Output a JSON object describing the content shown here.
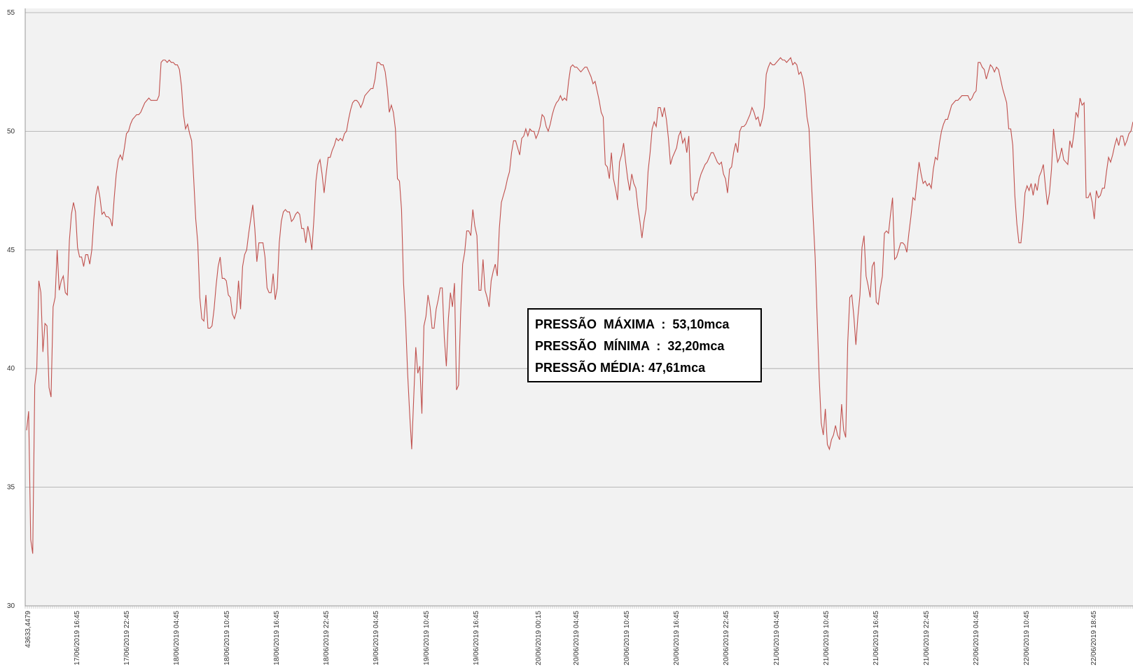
{
  "chart_data": {
    "type": "line",
    "title": "",
    "xlabel": "",
    "ylabel": "",
    "ylim": [
      30,
      55
    ],
    "yticks": [
      30,
      35,
      40,
      45,
      50,
      55
    ],
    "grid": "horizontal",
    "line_color": "#c0504d",
    "plot_background": "#f2f2f2",
    "x_tick_labels": [
      "43633,4479",
      "17/06/2019 16:45",
      "17/06/2019 22:45",
      "18/06/2019 04:45",
      "18/06/2019 10:45",
      "18/06/2019 16:45",
      "18/06/2019 22:45",
      "19/06/2019 04:45",
      "19/06/2019 10:45",
      "19/06/2019 16:45",
      "20/06/2019 00:15",
      "20/06/2019 04:45",
      "20/06/2019 10:45",
      "20/06/2019 16:45",
      "20/06/2019 22:45",
      "21/06/2019 04:45",
      "21/06/2019 10:45",
      "21/06/2019 16:45",
      "21/06/2019 22:45",
      "22/06/2019 04:45",
      "22/06/2019 10:45",
      "22/06/2019 18:45"
    ],
    "series": [
      {
        "values": [
          37.4,
          38.2,
          32.8,
          32.2,
          39.3,
          40.0,
          43.7,
          43.2,
          40.7,
          41.9,
          41.8,
          39.2,
          38.8,
          42.6,
          43.0,
          45.0,
          43.3,
          43.7,
          43.9,
          43.2,
          43.1,
          45.4,
          46.5,
          47.0,
          46.6,
          45.1,
          44.7,
          44.7,
          44.3,
          44.8,
          44.8,
          44.4,
          45.0,
          46.3,
          47.3,
          47.7,
          47.2,
          46.5,
          46.6,
          46.4,
          46.4,
          46.3,
          46.0,
          47.2,
          48.2,
          48.8,
          49.0,
          48.8,
          49.3,
          49.9,
          50.0,
          50.3,
          50.5,
          50.6,
          50.7,
          50.7,
          50.8,
          51.0,
          51.2,
          51.3,
          51.4,
          51.3,
          51.3,
          51.3,
          51.3,
          51.5,
          52.9,
          53.0,
          53.0,
          52.9,
          53.0,
          52.9,
          52.9,
          52.8,
          52.8,
          52.6,
          51.9,
          50.7,
          50.1,
          50.3,
          49.9,
          49.6,
          48.0,
          46.3,
          45.3,
          43.0,
          42.1,
          42.0,
          43.1,
          41.7,
          41.7,
          41.8,
          42.5,
          43.5,
          44.3,
          44.7,
          43.8,
          43.8,
          43.7,
          43.1,
          43.0,
          42.3,
          42.1,
          42.4,
          43.7,
          42.5,
          44.3,
          44.8,
          45.0,
          45.7,
          46.3,
          46.9,
          45.9,
          44.5,
          45.3,
          45.3,
          45.3,
          44.7,
          43.4,
          43.2,
          43.2,
          44.0,
          42.9,
          43.4,
          45.3,
          46.2,
          46.6,
          46.7,
          46.6,
          46.6,
          46.2,
          46.3,
          46.5,
          46.6,
          46.5,
          45.9,
          45.9,
          45.3,
          46.0,
          45.6,
          45.0,
          46.3,
          47.9,
          48.6,
          48.8,
          48.2,
          47.4,
          48.2,
          48.9,
          48.9,
          49.2,
          49.4,
          49.7,
          49.6,
          49.7,
          49.6,
          49.9,
          50.0,
          50.5,
          50.9,
          51.2,
          51.3,
          51.3,
          51.2,
          51.0,
          51.2,
          51.5,
          51.6,
          51.7,
          51.8,
          51.8,
          52.2,
          52.9,
          52.9,
          52.8,
          52.8,
          52.5,
          51.8,
          50.8,
          51.1,
          50.8,
          50.1,
          48.0,
          47.9,
          46.7,
          43.6,
          42.0,
          39.8,
          38.1,
          36.6,
          38.8,
          40.9,
          39.8,
          40.1,
          38.1,
          41.8,
          42.2,
          43.1,
          42.6,
          41.7,
          41.7,
          42.5,
          42.9,
          43.4,
          43.4,
          41.3,
          40.1,
          42.1,
          43.2,
          42.6,
          43.6,
          39.1,
          39.3,
          42.3,
          44.4,
          44.9,
          45.8,
          45.8,
          45.6,
          46.7,
          46.0,
          45.6,
          43.3,
          43.3,
          44.6,
          43.3,
          43.0,
          42.6,
          43.7,
          44.1,
          44.4,
          43.9,
          45.9,
          47.0,
          47.3,
          47.6,
          48.0,
          48.3,
          49.1,
          49.6,
          49.6,
          49.3,
          49.0,
          49.7,
          49.8,
          50.1,
          49.8,
          50.1,
          50.0,
          50.0,
          49.7,
          49.9,
          50.2,
          50.7,
          50.6,
          50.2,
          50.0,
          50.3,
          50.7,
          51.0,
          51.2,
          51.3,
          51.5,
          51.3,
          51.4,
          51.3,
          52.1,
          52.7,
          52.8,
          52.7,
          52.7,
          52.6,
          52.5,
          52.6,
          52.7,
          52.7,
          52.5,
          52.3,
          52.0,
          52.1,
          51.7,
          51.3,
          50.8,
          50.6,
          48.6,
          48.5,
          48.0,
          49.1,
          48.0,
          47.6,
          47.1,
          48.7,
          49.0,
          49.5,
          48.7,
          48.0,
          47.5,
          48.2,
          47.8,
          47.6,
          46.8,
          46.2,
          45.5,
          46.2,
          46.7,
          48.3,
          49.1,
          50.1,
          50.4,
          50.2,
          51.0,
          51.0,
          50.6,
          51.0,
          50.5,
          49.7,
          48.6,
          48.9,
          49.1,
          49.3,
          49.8,
          50.0,
          49.5,
          49.7,
          49.1,
          49.8,
          47.3,
          47.1,
          47.4,
          47.4,
          47.9,
          48.2,
          48.4,
          48.6,
          48.7,
          48.9,
          49.1,
          49.1,
          48.9,
          48.7,
          48.6,
          48.7,
          48.2,
          48.0,
          47.4,
          48.4,
          48.5,
          49.1,
          49.5,
          49.1,
          50.0,
          50.2,
          50.2,
          50.3,
          50.5,
          50.7,
          51.0,
          50.8,
          50.5,
          50.6,
          50.2,
          50.5,
          51.0,
          52.4,
          52.7,
          52.9,
          52.8,
          52.8,
          52.9,
          53.0,
          53.1,
          53.0,
          53.0,
          52.9,
          53.0,
          53.1,
          52.8,
          52.9,
          52.8,
          52.4,
          52.5,
          52.2,
          51.6,
          50.6,
          50.1,
          48.2,
          46.4,
          44.7,
          42.1,
          39.6,
          37.7,
          37.2,
          38.3,
          36.8,
          36.6,
          37.0,
          37.2,
          37.6,
          37.2,
          37.0,
          38.5,
          37.4,
          37.1,
          41.1,
          43.0,
          43.1,
          42.2,
          41.0,
          42.2,
          43.1,
          45.1,
          45.6,
          43.9,
          43.5,
          43.0,
          44.3,
          44.5,
          42.8,
          42.7,
          43.4,
          43.9,
          45.7,
          45.8,
          45.7,
          46.5,
          47.2,
          44.6,
          44.7,
          45.0,
          45.3,
          45.3,
          45.2,
          44.9,
          45.7,
          46.4,
          47.2,
          47.1,
          47.9,
          48.7,
          48.2,
          47.8,
          47.9,
          47.7,
          47.8,
          47.6,
          48.4,
          48.9,
          48.8,
          49.5,
          50.0,
          50.3,
          50.5,
          50.5,
          50.8,
          51.1,
          51.2,
          51.3,
          51.3,
          51.4,
          51.5,
          51.5,
          51.5,
          51.5,
          51.3,
          51.4,
          51.6,
          51.7,
          52.9,
          52.9,
          52.7,
          52.6,
          52.2,
          52.5,
          52.8,
          52.7,
          52.5,
          52.7,
          52.6,
          52.2,
          51.8,
          51.5,
          51.2,
          50.1,
          50.1,
          49.4,
          47.3,
          46.1,
          45.3,
          45.3,
          46.2,
          47.4,
          47.7,
          47.5,
          47.8,
          47.3,
          47.8,
          47.5,
          48.1,
          48.3,
          48.6,
          47.7,
          46.9,
          47.4,
          48.4,
          50.1,
          49.3,
          48.7,
          48.9,
          49.3,
          48.8,
          48.7,
          48.6,
          49.6,
          49.3,
          49.9,
          50.8,
          50.6,
          51.4,
          51.1,
          51.2,
          47.2,
          47.2,
          47.4,
          47.0,
          46.3,
          47.5,
          47.2,
          47.3,
          47.6,
          47.6,
          48.3,
          48.9,
          48.7,
          49.0,
          49.4,
          49.7,
          49.4,
          49.8,
          49.8,
          49.4,
          49.6,
          49.9,
          50.0,
          50.4
        ]
      }
    ]
  },
  "stats": {
    "max_label": "PRESSÃO  MÁXIMA  :  53,10mca",
    "min_label": "PRESSÃO  MÍNIMA  :  32,20mca",
    "mean_label": "PRESSÃO MÉDIA: 47,61mca"
  }
}
